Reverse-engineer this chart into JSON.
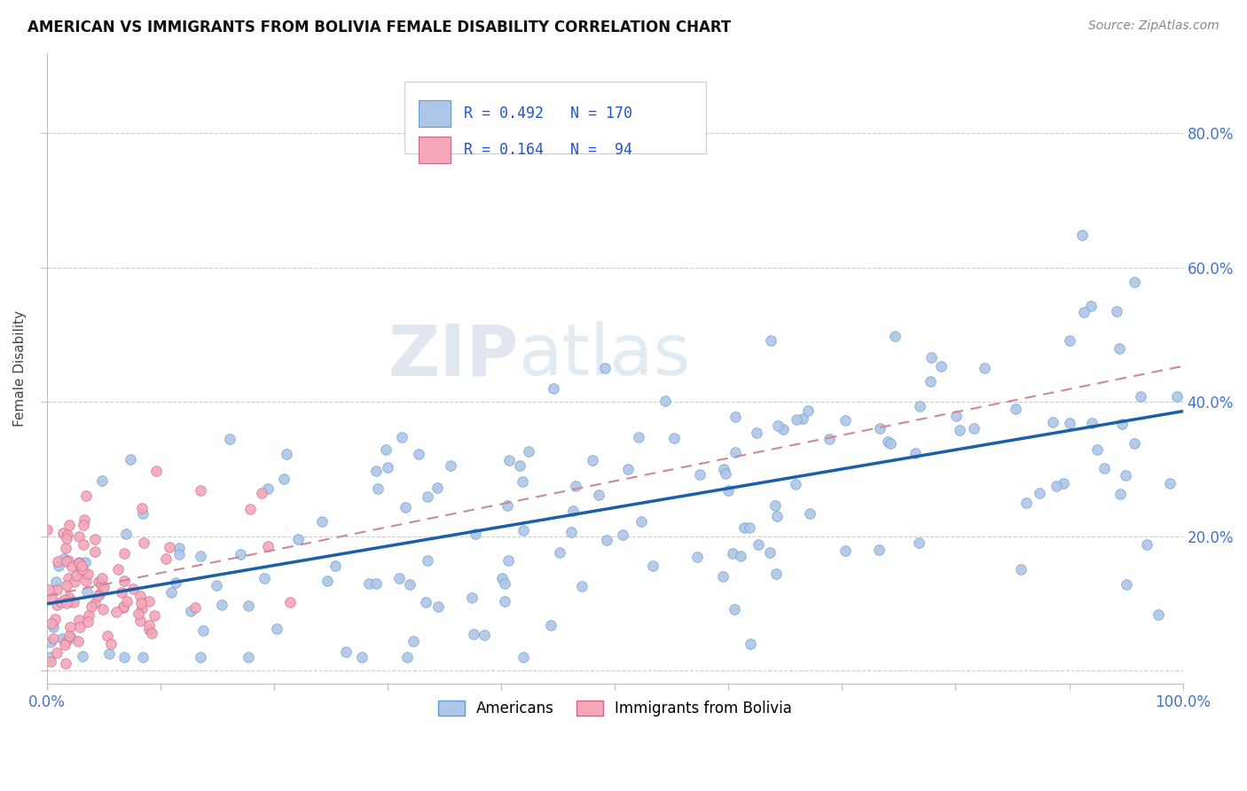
{
  "title": "AMERICAN VS IMMIGRANTS FROM BOLIVIA FEMALE DISABILITY CORRELATION CHART",
  "source": "Source: ZipAtlas.com",
  "ylabel": "Female Disability",
  "r_american": 0.492,
  "n_american": 170,
  "r_bolivia": 0.164,
  "n_bolivia": 94,
  "american_color": "#aec6e8",
  "american_edge_color": "#6699cc",
  "american_line_color": "#1a5fa8",
  "bolivia_color": "#f4a7b9",
  "bolivia_edge_color": "#cc6688",
  "bolivia_line_color": "#cc8899",
  "legend_label_american": "Americans",
  "legend_label_bolivia": "Immigrants from Bolivia",
  "xlim": [
    0.0,
    1.0
  ],
  "ylim": [
    -0.02,
    0.92
  ],
  "ytick_positions": [
    0.0,
    0.2,
    0.4,
    0.6,
    0.8
  ],
  "ytick_labels_right": [
    "",
    "20.0%",
    "40.0%",
    "60.0%",
    "80.0%"
  ],
  "xtick_vals": [
    0.0,
    0.1,
    0.2,
    0.3,
    0.4,
    0.5,
    0.6,
    0.7,
    0.8,
    0.9,
    1.0
  ],
  "tick_color": "#4472c4",
  "grid_color": "#cccccc",
  "american_seed": 12,
  "bolivia_seed": 5
}
